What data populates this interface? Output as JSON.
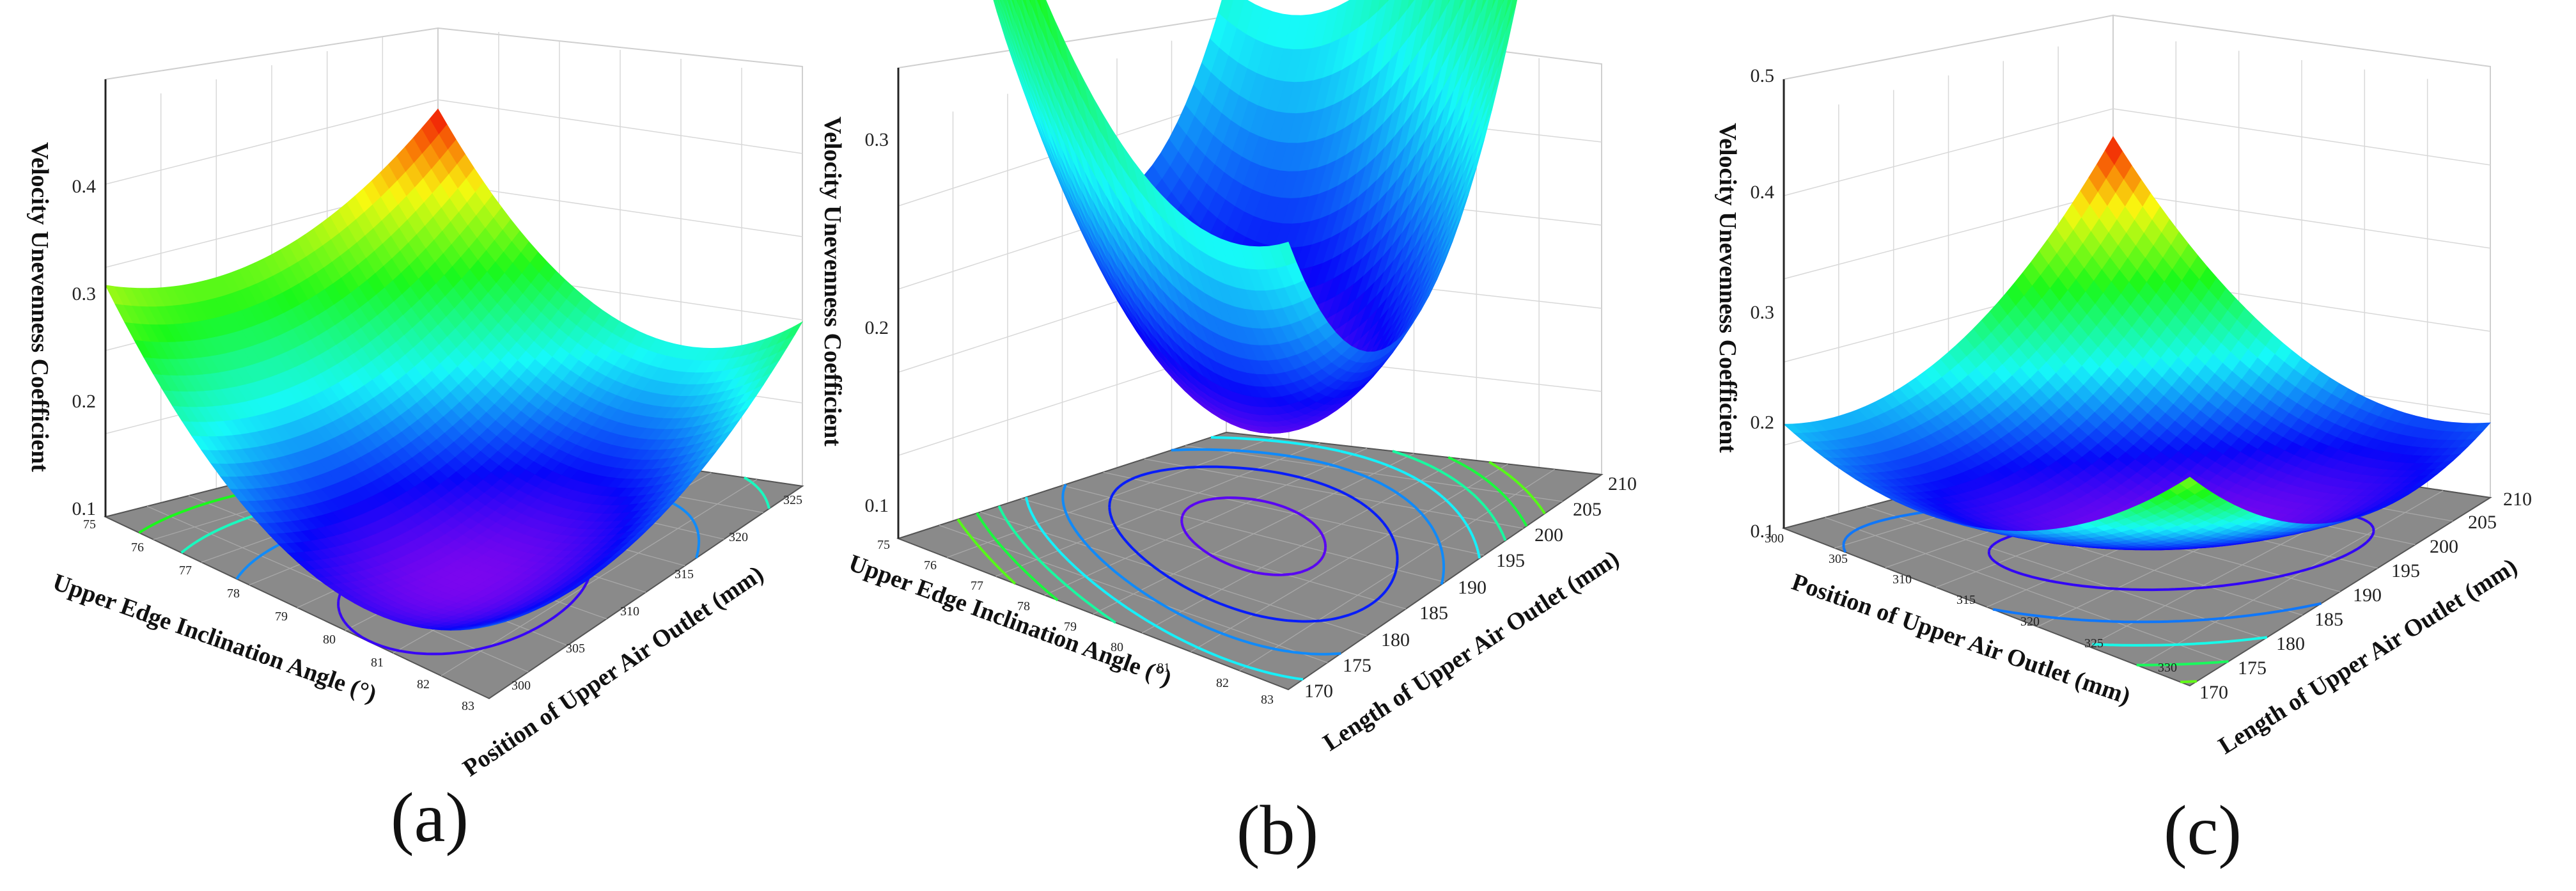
{
  "figure": {
    "panels": [
      "(a)",
      "(b)",
      "(c)"
    ]
  },
  "chart_data": [
    {
      "type": "surface",
      "panel_label": "(a)",
      "zlabel": "Velocity Unevenness Coefficient",
      "xlabel": "Upper Edge Inclination Angle (°)",
      "ylabel": "Position of Upper Air Outlet (mm)",
      "x_ticks": [
        "75",
        "76",
        "77",
        "78",
        "79",
        "80",
        "81",
        "82",
        "83"
      ],
      "y_ticks": [
        "300",
        "305",
        "310",
        "315",
        "320",
        "325"
      ],
      "z_ticks": [
        "0.1",
        "0.2",
        "0.3",
        "0.4"
      ],
      "xlim": [
        75,
        83
      ],
      "ylim": [
        300,
        330
      ],
      "zlim": [
        0.07,
        0.47
      ],
      "surface": {
        "x_center": 80.5,
        "y_center": 309,
        "z_min": 0.08,
        "ax": 0.0065,
        "ay": 0.00025
      },
      "contour_levels": [
        0.1,
        0.15,
        0.2,
        0.25,
        0.3,
        0.35,
        0.4
      ]
    },
    {
      "type": "surface",
      "panel_label": "(b)",
      "zlabel": "Velocity Unevenness Coefficient",
      "xlabel": "Upper Edge Inclination Angle (°)",
      "ylabel": "Length of Upper Air Outlet (mm)",
      "x_ticks": [
        "75",
        "76",
        "77",
        "78",
        "79",
        "80",
        "81",
        "82",
        "83"
      ],
      "y_ticks": [
        "170",
        "175",
        "180",
        "185",
        "190",
        "195",
        "200",
        "205",
        "210"
      ],
      "z_ticks": [
        "0.1",
        "0.2",
        "0.3"
      ],
      "xlim": [
        75,
        83
      ],
      "ylim": [
        170,
        210
      ],
      "zlim": [
        0.08,
        0.33
      ],
      "surface": {
        "x_center": 79,
        "y_center": 190,
        "z_min": 0.12,
        "ax": 0.0045,
        "ay": 0.00035,
        "axy": 0.0012
      },
      "contour_levels": [
        0.13,
        0.16,
        0.19,
        0.22,
        0.25,
        0.28,
        0.31
      ]
    },
    {
      "type": "surface",
      "panel_label": "(c)",
      "zlabel": "Velocity Unevenness Coefficient",
      "xlabel": "Position of Upper Air Outlet (mm)",
      "ylabel": "Length of Upper Air Outlet (mm)",
      "x_ticks": [
        "300",
        "305",
        "310",
        "315",
        "320",
        "325",
        "330"
      ],
      "y_ticks": [
        "170",
        "175",
        "180",
        "185",
        "190",
        "195",
        "200",
        "205",
        "210"
      ],
      "z_ticks": [
        "0.1",
        "0.2",
        "0.3",
        "0.4",
        "0.5"
      ],
      "xlim": [
        300,
        330
      ],
      "ylim": [
        170,
        210
      ],
      "zlim": [
        0.08,
        0.5
      ],
      "surface": {
        "x_center": 318,
        "y_center": 190,
        "z_min": 0.1,
        "ax": 0.00035,
        "ay": 0.00018,
        "axy": -0.00028
      },
      "contour_levels": [
        0.12,
        0.16,
        0.2,
        0.24,
        0.28,
        0.32,
        0.36
      ]
    }
  ]
}
